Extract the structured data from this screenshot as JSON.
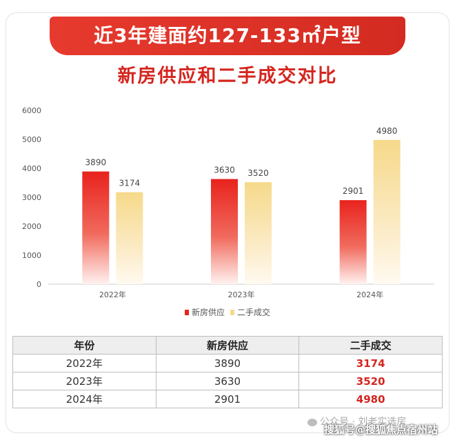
{
  "banner": {
    "title": "近3年建面约127-133㎡户型"
  },
  "subtitle": "新房供应和二手成交对比",
  "chart_data": {
    "type": "bar",
    "title": "新房供应和二手成交对比",
    "categories": [
      "2022年",
      "2023年",
      "2024年"
    ],
    "series": [
      {
        "name": "新房供应",
        "values": [
          3890,
          3630,
          2901
        ],
        "color": "#e8231d"
      },
      {
        "name": "二手成交",
        "values": [
          3174,
          3520,
          4980
        ],
        "color": "#f6d98a"
      }
    ],
    "ylim": [
      0,
      6000
    ],
    "yticks": [
      0,
      1000,
      2000,
      3000,
      4000,
      5000,
      6000
    ],
    "grid": false,
    "legend": "bottom-center",
    "data_labels": true
  },
  "table": {
    "headers": [
      "年份",
      "新房供应",
      "二手成交"
    ],
    "rows": [
      [
        "2022年",
        "3890",
        "3174"
      ],
      [
        "2023年",
        "3630",
        "3520"
      ],
      [
        "2024年",
        "2901",
        "4980"
      ]
    ]
  },
  "watermark": {
    "line1": "公众号 · 刘老实选房",
    "line2": "搜狐号@搜狐焦点宿州站"
  }
}
